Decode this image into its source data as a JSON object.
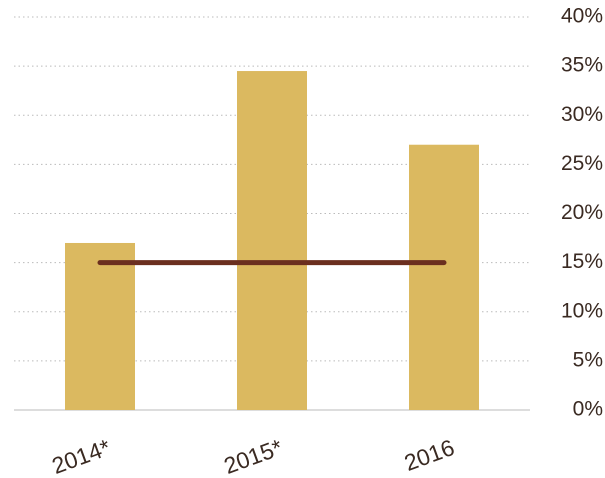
{
  "chart_data": {
    "type": "bar",
    "categories": [
      "2014*",
      "2015*",
      "2016"
    ],
    "series": [
      {
        "type": "bar",
        "color": "#dbb960",
        "values": [
          17,
          34.5,
          27
        ]
      },
      {
        "type": "line",
        "color": "#6b2f1f",
        "values": [
          15,
          15,
          15
        ]
      }
    ],
    "ylim": [
      0,
      40
    ],
    "yticks": [
      {
        "value": 0,
        "label": "0%"
      },
      {
        "value": 5,
        "label": "5%"
      },
      {
        "value": 10,
        "label": "10%"
      },
      {
        "value": 15,
        "label": "15%"
      },
      {
        "value": 20,
        "label": "20%"
      },
      {
        "value": 25,
        "label": "25%"
      },
      {
        "value": 30,
        "label": "30%"
      },
      {
        "value": 35,
        "label": "35%"
      },
      {
        "value": 40,
        "label": "40%"
      }
    ],
    "grid": true,
    "y_axis_side": "right"
  }
}
